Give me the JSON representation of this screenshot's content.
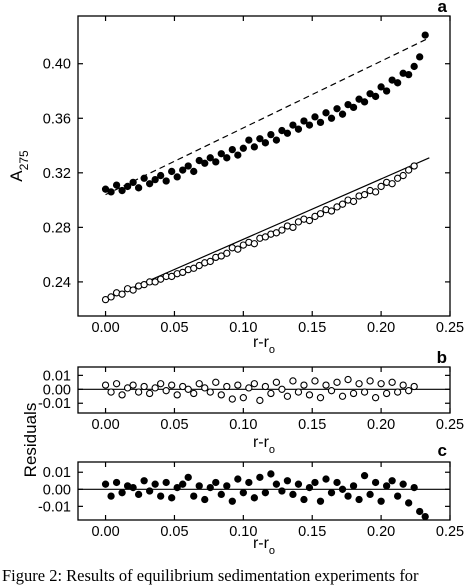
{
  "caption": "Figure 2: Results of equilibrium sedimentation experiments for",
  "chart_data": [
    {
      "panel": "a",
      "type": "scatter",
      "xlabel": "r-r",
      "xlabel_sub": "o",
      "ylabel": "A",
      "ylabel_sub": "275",
      "xlim": [
        -0.02,
        0.25
      ],
      "ylim": [
        0.215,
        0.435
      ],
      "xticks": [
        "0.00",
        "0.05",
        "0.10",
        "0.15",
        "0.20",
        "0.25"
      ],
      "yticks": [
        "0.24",
        "0.28",
        "0.32",
        "0.36",
        "0.40"
      ],
      "series": [
        {
          "marker": "filled-circle",
          "fit": "dashed",
          "fit_line": {
            "x": [
              0.0,
              0.235
            ],
            "y": [
              0.304,
              0.419
            ]
          },
          "x": [
            0.0,
            0.004,
            0.008,
            0.012,
            0.016,
            0.02,
            0.024,
            0.028,
            0.032,
            0.036,
            0.04,
            0.044,
            0.048,
            0.052,
            0.056,
            0.06,
            0.064,
            0.068,
            0.072,
            0.076,
            0.08,
            0.084,
            0.088,
            0.092,
            0.096,
            0.1,
            0.104,
            0.108,
            0.112,
            0.116,
            0.12,
            0.124,
            0.128,
            0.132,
            0.136,
            0.14,
            0.144,
            0.148,
            0.152,
            0.156,
            0.16,
            0.164,
            0.168,
            0.172,
            0.176,
            0.18,
            0.184,
            0.188,
            0.192,
            0.196,
            0.2,
            0.204,
            0.208,
            0.212,
            0.216,
            0.22,
            0.224,
            0.228,
            0.232
          ],
          "y": [
            0.308,
            0.306,
            0.311,
            0.307,
            0.31,
            0.313,
            0.309,
            0.316,
            0.312,
            0.315,
            0.318,
            0.314,
            0.321,
            0.317,
            0.322,
            0.325,
            0.321,
            0.329,
            0.327,
            0.331,
            0.328,
            0.334,
            0.331,
            0.337,
            0.333,
            0.338,
            0.344,
            0.339,
            0.345,
            0.342,
            0.348,
            0.344,
            0.351,
            0.349,
            0.355,
            0.352,
            0.358,
            0.355,
            0.361,
            0.357,
            0.364,
            0.36,
            0.367,
            0.363,
            0.37,
            0.368,
            0.374,
            0.372,
            0.378,
            0.376,
            0.383,
            0.38,
            0.388,
            0.386,
            0.393,
            0.392,
            0.398,
            0.405,
            0.421
          ]
        },
        {
          "marker": "open-circle",
          "fit": "solid",
          "fit_line": {
            "x": [
              0.0,
              0.235
            ],
            "y": [
              0.227,
              0.331
            ]
          },
          "x": [
            0.0,
            0.004,
            0.008,
            0.012,
            0.016,
            0.02,
            0.024,
            0.028,
            0.032,
            0.036,
            0.04,
            0.044,
            0.048,
            0.052,
            0.056,
            0.06,
            0.064,
            0.068,
            0.072,
            0.076,
            0.08,
            0.084,
            0.088,
            0.092,
            0.096,
            0.1,
            0.104,
            0.108,
            0.112,
            0.116,
            0.12,
            0.124,
            0.128,
            0.132,
            0.136,
            0.14,
            0.144,
            0.148,
            0.152,
            0.156,
            0.16,
            0.164,
            0.168,
            0.172,
            0.176,
            0.18,
            0.184,
            0.188,
            0.192,
            0.196,
            0.2,
            0.204,
            0.208,
            0.212,
            0.216,
            0.22,
            0.224
          ],
          "y": [
            0.227,
            0.229,
            0.232,
            0.231,
            0.235,
            0.234,
            0.237,
            0.238,
            0.24,
            0.24,
            0.242,
            0.244,
            0.244,
            0.246,
            0.247,
            0.249,
            0.25,
            0.252,
            0.254,
            0.255,
            0.258,
            0.259,
            0.261,
            0.265,
            0.264,
            0.267,
            0.269,
            0.268,
            0.272,
            0.273,
            0.275,
            0.276,
            0.278,
            0.281,
            0.28,
            0.284,
            0.286,
            0.285,
            0.288,
            0.29,
            0.293,
            0.292,
            0.295,
            0.297,
            0.3,
            0.299,
            0.303,
            0.304,
            0.307,
            0.306,
            0.31,
            0.313,
            0.312,
            0.316,
            0.318,
            0.322,
            0.325
          ]
        }
      ]
    },
    {
      "panel": "b",
      "type": "scatter",
      "xlabel": "r-r",
      "xlabel_sub": "o",
      "ylabel": "Residuals",
      "xlim": [
        -0.02,
        0.25
      ],
      "ylim": [
        -0.017,
        0.016
      ],
      "xticks": [
        "0.00",
        "0.05",
        "0.10",
        "0.15",
        "0.20",
        "0.25"
      ],
      "yticks": [
        "0.01",
        "0.00",
        "-0.01"
      ],
      "series": [
        {
          "marker": "open-circle",
          "x": [
            0.0,
            0.004,
            0.008,
            0.012,
            0.016,
            0.02,
            0.024,
            0.028,
            0.032,
            0.036,
            0.04,
            0.044,
            0.048,
            0.052,
            0.056,
            0.06,
            0.064,
            0.068,
            0.072,
            0.076,
            0.08,
            0.084,
            0.088,
            0.092,
            0.096,
            0.1,
            0.104,
            0.108,
            0.112,
            0.116,
            0.12,
            0.124,
            0.128,
            0.132,
            0.136,
            0.14,
            0.144,
            0.148,
            0.152,
            0.156,
            0.16,
            0.164,
            0.168,
            0.172,
            0.176,
            0.18,
            0.184,
            0.188,
            0.192,
            0.196,
            0.2,
            0.204,
            0.208,
            0.212,
            0.216,
            0.22,
            0.224
          ],
          "y": [
            0.003,
            -0.002,
            0.004,
            -0.004,
            0.001,
            0.003,
            -0.002,
            0.002,
            -0.003,
            0.001,
            0.004,
            -0.001,
            0.003,
            -0.004,
            0.002,
            0.0,
            -0.003,
            0.004,
            0.001,
            -0.002,
            0.005,
            -0.004,
            0.002,
            -0.007,
            0.003,
            -0.006,
            0.001,
            0.004,
            -0.008,
            0.002,
            -0.003,
            0.005,
            0.0,
            -0.005,
            0.006,
            -0.002,
            0.003,
            -0.004,
            0.006,
            -0.006,
            0.003,
            -0.001,
            0.005,
            -0.005,
            0.007,
            -0.003,
            0.004,
            -0.002,
            0.006,
            -0.006,
            0.004,
            -0.003,
            0.005,
            -0.002,
            0.003,
            -0.001,
            0.002
          ]
        }
      ]
    },
    {
      "panel": "c",
      "type": "scatter",
      "xlabel": "r-r",
      "xlabel_sub": "o",
      "xlim": [
        -0.02,
        0.25
      ],
      "ylim": [
        -0.018,
        0.016
      ],
      "xticks": [
        "0.00",
        "0.05",
        "0.10",
        "0.15",
        "0.20",
        "0.25"
      ],
      "yticks": [
        "0.01",
        "0.00",
        "-0.01"
      ],
      "series": [
        {
          "marker": "filled-circle",
          "x": [
            0.0,
            0.004,
            0.008,
            0.012,
            0.016,
            0.02,
            0.024,
            0.028,
            0.032,
            0.036,
            0.04,
            0.044,
            0.048,
            0.052,
            0.056,
            0.06,
            0.064,
            0.068,
            0.072,
            0.076,
            0.08,
            0.084,
            0.088,
            0.092,
            0.096,
            0.1,
            0.104,
            0.108,
            0.112,
            0.116,
            0.12,
            0.124,
            0.128,
            0.132,
            0.136,
            0.14,
            0.144,
            0.148,
            0.152,
            0.156,
            0.16,
            0.164,
            0.168,
            0.172,
            0.176,
            0.18,
            0.184,
            0.188,
            0.192,
            0.196,
            0.2,
            0.204,
            0.208,
            0.212,
            0.216,
            0.22,
            0.224,
            0.228,
            0.232
          ],
          "y": [
            0.003,
            -0.004,
            0.004,
            -0.002,
            0.002,
            0.001,
            -0.003,
            0.005,
            -0.001,
            0.003,
            -0.004,
            0.004,
            -0.005,
            0.001,
            0.003,
            0.007,
            -0.004,
            0.002,
            -0.006,
            0.001,
            0.004,
            -0.003,
            0.002,
            -0.007,
            0.006,
            -0.002,
            0.004,
            -0.005,
            0.007,
            -0.002,
            0.009,
            0.003,
            -0.001,
            0.005,
            -0.003,
            0.003,
            -0.006,
            0.001,
            0.004,
            -0.007,
            0.006,
            -0.002,
            0.004,
            0.0,
            -0.004,
            0.002,
            -0.006,
            0.008,
            -0.003,
            0.004,
            -0.007,
            0.002,
            0.005,
            -0.004,
            0.003,
            -0.008,
            0.001,
            -0.013,
            -0.016
          ]
        }
      ]
    }
  ]
}
